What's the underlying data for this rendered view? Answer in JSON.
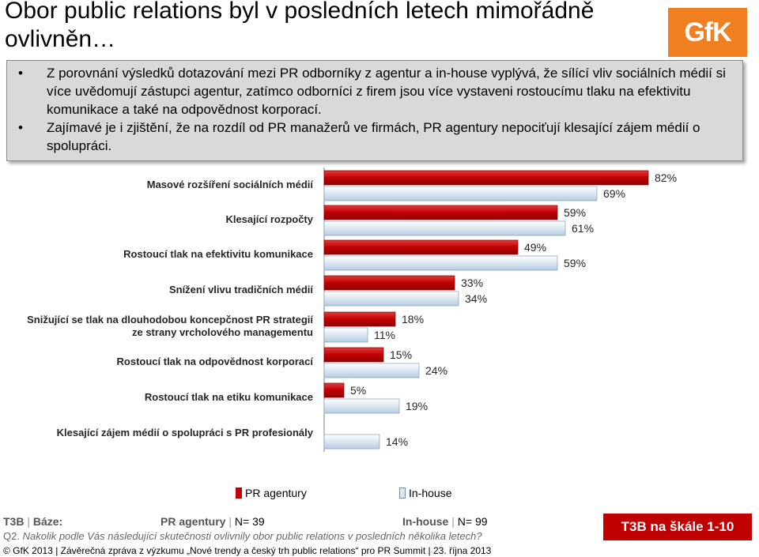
{
  "header": {
    "title": "Obor public relations byl v posledních letech mimořádně ovlivněn…",
    "logo_text": "GfK",
    "bullets": [
      "Z porovnání výsledků dotazování mezi  PR odborníky z agentur a in-house  vyplývá, že sílící vliv sociálních médií si více uvědomují zástupci agentur, zatímco odborníci z firem jsou více vystaveni rostoucímu tlaku na efektivitu komunikace a také na odpovědnost korporací.",
      "Zajímavé je i zjištění, že na rozdíl od PR manažerů ve firmách, PR agentury nepociťují klesající zájem médií o spolupráci."
    ]
  },
  "chart_data": {
    "type": "bar",
    "orientation": "horizontal",
    "categories": [
      "Masové rozšíření sociálních médií",
      "Klesající rozpočty",
      "Rostoucí tlak na efektivitu komunikace",
      "Snížení vlivu tradičních médií",
      "Snižující se tlak na dlouhodobou koncepčnost PR strategií ze strany vrcholového managementu",
      "Rostoucí tlak na odpovědnost korporací",
      "Rostoucí tlak na etiku komunikace",
      "Klesající zájem médií o spolupráci s PR profesionály"
    ],
    "category_lines": [
      [
        "Masové rozšíření sociálních médií"
      ],
      [
        "Klesající rozpočty"
      ],
      [
        "Rostoucí tlak na efektivitu komunikace"
      ],
      [
        "Snížení vlivu tradičních médií"
      ],
      [
        "Snižující se tlak na dlouhodobou koncepčnost PR strategií",
        "ze strany vrcholového managementu"
      ],
      [
        "Rostoucí tlak na odpovědnost korporací"
      ],
      [
        "Rostoucí tlak na etiku komunikace"
      ],
      [
        "Klesající zájem médií o spolupráci s PR profesionály"
      ]
    ],
    "series": [
      {
        "name": "PR agentury",
        "color": "#c00000",
        "values": [
          82,
          59,
          49,
          33,
          18,
          15,
          5,
          0
        ]
      },
      {
        "name": "In-house",
        "color": "#dce6f1",
        "values": [
          69,
          61,
          59,
          34,
          11,
          24,
          19,
          14
        ]
      }
    ],
    "value_labels": [
      [
        "82%",
        "69%"
      ],
      [
        "59%",
        "61%"
      ],
      [
        "49%",
        "59%"
      ],
      [
        "33%",
        "34%"
      ],
      [
        "18%",
        "11%"
      ],
      [
        "15%",
        "24%"
      ],
      [
        "5%",
        "19%"
      ],
      [
        "",
        "14%"
      ]
    ],
    "xlim": [
      0,
      100
    ],
    "legend_position": "bottom"
  },
  "legend": {
    "agency": "PR agentury",
    "inhouse": "In-house"
  },
  "footer": {
    "t3b": "T3B",
    "base_label": "Báze:",
    "agency_label": "PR agentury",
    "agency_n": "N= 39",
    "inhouse_label": "In-house",
    "inhouse_n": "N= 99",
    "q_label": "Q2.",
    "question": "Nakolik podle Vás následující skutečnosti ovlivnily obor public relations v posledních několika letech?",
    "copyright": "© GfK 2013 | Závěrečná zpráva z výzkumu „Nové trendy a český trh public relations“ pro PR Summit | 23. října 2013",
    "badge": "T3B na škále 1-10"
  }
}
